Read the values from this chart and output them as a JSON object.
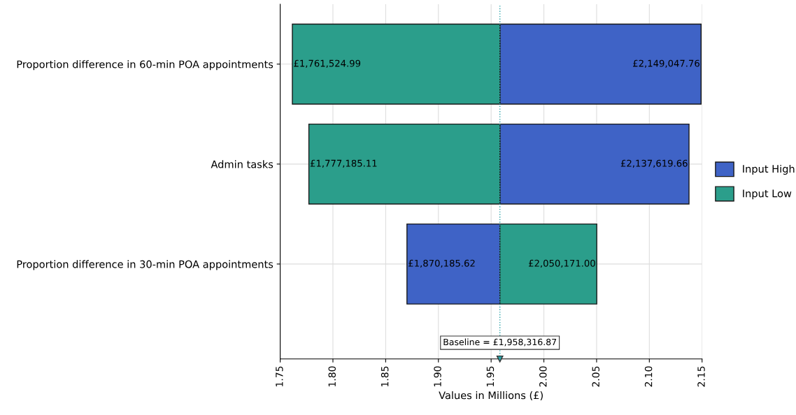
{
  "chart_data": {
    "type": "bar",
    "orientation": "horizontal",
    "xlabel": "Values in Millions (£)",
    "categories": [
      "Proportion difference in 60-min POA appointments",
      "Admin tasks",
      "Proportion difference in 30-min POA appointments"
    ],
    "series": [
      {
        "name": "Input High",
        "color": "#3f63c6",
        "base": [
          1.95831687,
          1.95831687,
          1.95831687
        ],
        "values": [
          0.19073089,
          0.17930279,
          -0.08813125
        ]
      },
      {
        "name": "Input Low",
        "color": "#2b9e8b",
        "base": [
          1.95831687,
          1.95831687,
          1.95831687
        ],
        "values": [
          -0.19679188,
          -0.18113176,
          0.09185413
        ]
      }
    ],
    "annotations": [
      {
        "text": "£2,149,047.76",
        "x": 2.14904776,
        "y": "Proportion difference in 60-min POA appointments"
      },
      {
        "text": "£1,761,524.99",
        "x": 1.76152499,
        "y": "Proportion difference in 60-min POA appointments"
      },
      {
        "text": "£2,137,619.66",
        "x": 2.13761966,
        "y": "Admin tasks"
      },
      {
        "text": "£1,777,185.11",
        "x": 1.77718511,
        "y": "Admin tasks"
      },
      {
        "text": "£1,870,185.62",
        "x": 1.87018562,
        "y": "Proportion difference in 30-min POA appointments"
      },
      {
        "text": "£2,050,171.00",
        "x": 2.050171,
        "y": "Proportion difference in 30-min POA appointments"
      }
    ],
    "xlim": [
      1.75,
      2.15
    ],
    "xticks": [
      {
        "value": 1.75,
        "label": "1.75"
      },
      {
        "value": 1.8,
        "label": "1.80"
      },
      {
        "value": 1.85,
        "label": "1.85"
      },
      {
        "value": 1.9,
        "label": "1.90"
      },
      {
        "value": 1.95,
        "label": "1.95"
      },
      {
        "value": 2.0,
        "label": "2.00"
      },
      {
        "value": 2.05,
        "label": "2.05"
      },
      {
        "value": 2.1,
        "label": "2.10"
      },
      {
        "value": 2.15,
        "label": "2.15"
      }
    ],
    "ref_lines": [
      {
        "axis": "x",
        "value": 1.95831687,
        "label": "Baseline = £1,958,316.87",
        "color": "#2aa3a8",
        "line_style": "dotted"
      }
    ],
    "grid": true,
    "legend": "right"
  }
}
